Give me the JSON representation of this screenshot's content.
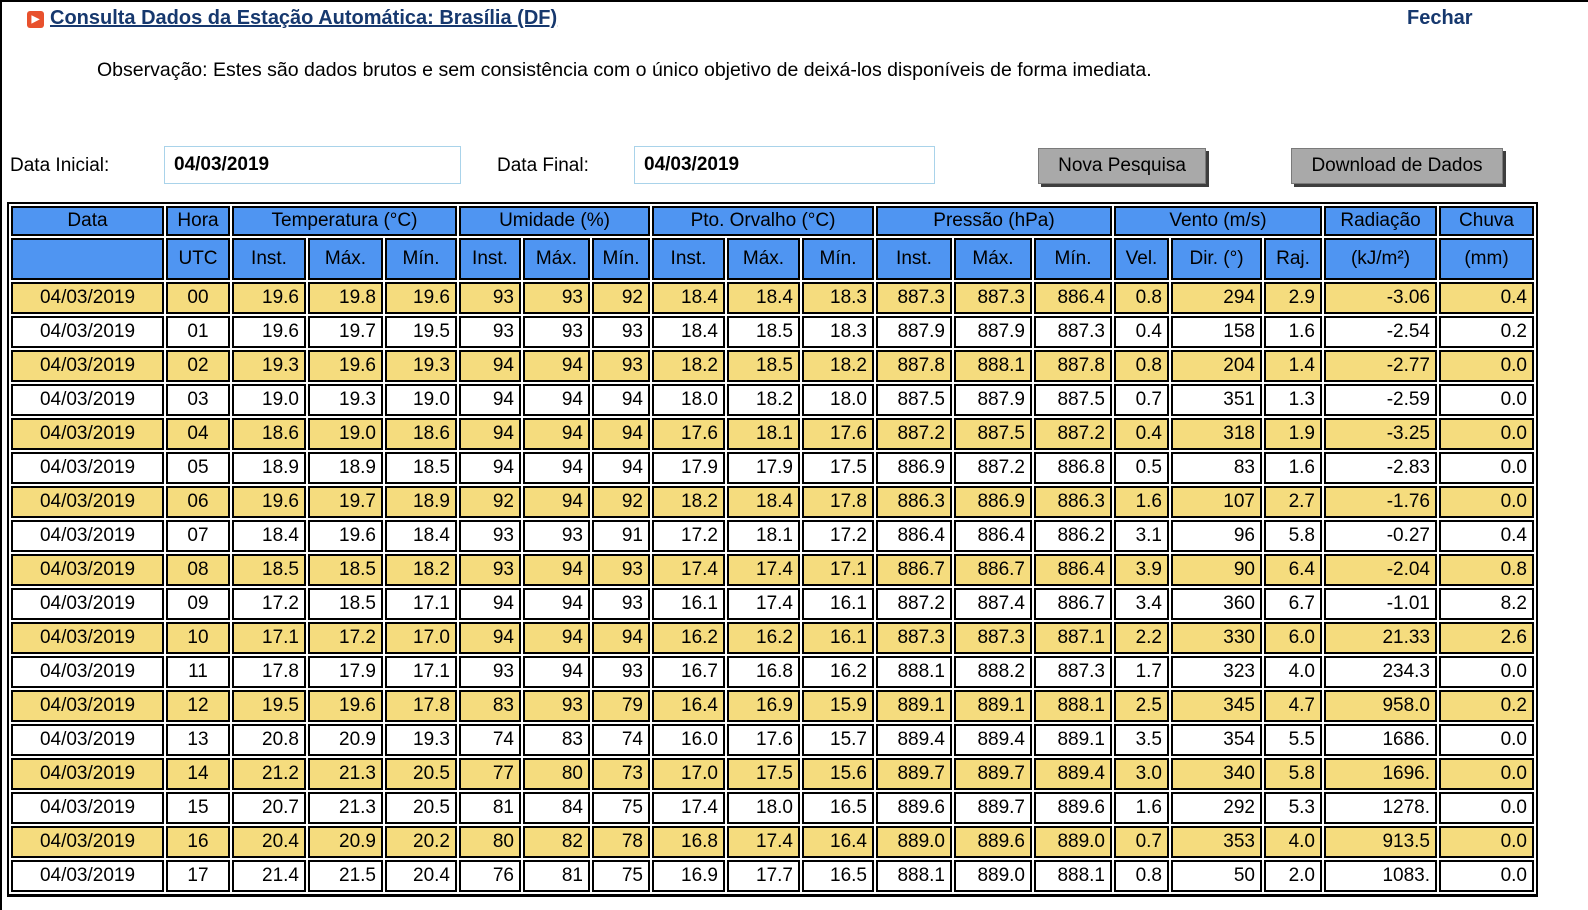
{
  "header": {
    "title": "Consulta Dados da Estação Automática: Brasília (DF)",
    "close_label": "Fechar",
    "observation": "Observação: Estes são dados brutos e sem consistência com o único objetivo de deixá-los disponíveis de forma imediata."
  },
  "icons": {
    "title_bullet": "▶"
  },
  "form": {
    "start_label": "Data Inicial:",
    "start_value": "04/03/2019",
    "end_label": "Data Final:",
    "end_value": "04/03/2019",
    "new_search_label": "Nova Pesquisa",
    "download_label": "Download de Dados"
  },
  "colors": {
    "navy": "#16386E",
    "icon-orange": "#E8512D",
    "header-blue": "#4F95F2",
    "row-yellow": "#F5DC7E",
    "button-gray": "#A9A9A9",
    "input-border": "#A9D3EA"
  },
  "table": {
    "header_row1": [
      {
        "label": "Data",
        "colspan": 1
      },
      {
        "label": "Hora",
        "colspan": 1
      },
      {
        "label": "Temperatura (°C)",
        "colspan": 3
      },
      {
        "label": "Umidade (%)",
        "colspan": 3
      },
      {
        "label": "Pto. Orvalho (°C)",
        "colspan": 3
      },
      {
        "label": "Pressão (hPa)",
        "colspan": 3
      },
      {
        "label": "Vento (m/s)",
        "colspan": 3
      },
      {
        "label": "Radiação",
        "colspan": 1
      },
      {
        "label": "Chuva",
        "colspan": 1
      }
    ],
    "header_row2": [
      "",
      "UTC",
      "Inst.",
      "Máx.",
      "Mín.",
      "Inst.",
      "Máx.",
      "Mín.",
      "Inst.",
      "Máx.",
      "Mín.",
      "Inst.",
      "Máx.",
      "Mín.",
      "Vel.",
      "Dir. (°)",
      "Raj.",
      "(kJ/m²)",
      "(mm)"
    ],
    "rows": [
      [
        "04/03/2019",
        "00",
        "19.6",
        "19.8",
        "19.6",
        "93",
        "93",
        "92",
        "18.4",
        "18.4",
        "18.3",
        "887.3",
        "887.3",
        "886.4",
        "0.8",
        "294",
        "2.9",
        "-3.06",
        "0.4"
      ],
      [
        "04/03/2019",
        "01",
        "19.6",
        "19.7",
        "19.5",
        "93",
        "93",
        "93",
        "18.4",
        "18.5",
        "18.3",
        "887.9",
        "887.9",
        "887.3",
        "0.4",
        "158",
        "1.6",
        "-2.54",
        "0.2"
      ],
      [
        "04/03/2019",
        "02",
        "19.3",
        "19.6",
        "19.3",
        "94",
        "94",
        "93",
        "18.2",
        "18.5",
        "18.2",
        "887.8",
        "888.1",
        "887.8",
        "0.8",
        "204",
        "1.4",
        "-2.77",
        "0.0"
      ],
      [
        "04/03/2019",
        "03",
        "19.0",
        "19.3",
        "19.0",
        "94",
        "94",
        "94",
        "18.0",
        "18.2",
        "18.0",
        "887.5",
        "887.9",
        "887.5",
        "0.7",
        "351",
        "1.3",
        "-2.59",
        "0.0"
      ],
      [
        "04/03/2019",
        "04",
        "18.6",
        "19.0",
        "18.6",
        "94",
        "94",
        "94",
        "17.6",
        "18.1",
        "17.6",
        "887.2",
        "887.5",
        "887.2",
        "0.4",
        "318",
        "1.9",
        "-3.25",
        "0.0"
      ],
      [
        "04/03/2019",
        "05",
        "18.9",
        "18.9",
        "18.5",
        "94",
        "94",
        "94",
        "17.9",
        "17.9",
        "17.5",
        "886.9",
        "887.2",
        "886.8",
        "0.5",
        "83",
        "1.6",
        "-2.83",
        "0.0"
      ],
      [
        "04/03/2019",
        "06",
        "19.6",
        "19.7",
        "18.9",
        "92",
        "94",
        "92",
        "18.2",
        "18.4",
        "17.8",
        "886.3",
        "886.9",
        "886.3",
        "1.6",
        "107",
        "2.7",
        "-1.76",
        "0.0"
      ],
      [
        "04/03/2019",
        "07",
        "18.4",
        "19.6",
        "18.4",
        "93",
        "93",
        "91",
        "17.2",
        "18.1",
        "17.2",
        "886.4",
        "886.4",
        "886.2",
        "3.1",
        "96",
        "5.8",
        "-0.27",
        "0.4"
      ],
      [
        "04/03/2019",
        "08",
        "18.5",
        "18.5",
        "18.2",
        "93",
        "94",
        "93",
        "17.4",
        "17.4",
        "17.1",
        "886.7",
        "886.7",
        "886.4",
        "3.9",
        "90",
        "6.4",
        "-2.04",
        "0.8"
      ],
      [
        "04/03/2019",
        "09",
        "17.2",
        "18.5",
        "17.1",
        "94",
        "94",
        "93",
        "16.1",
        "17.4",
        "16.1",
        "887.2",
        "887.4",
        "886.7",
        "3.4",
        "360",
        "6.7",
        "-1.01",
        "8.2"
      ],
      [
        "04/03/2019",
        "10",
        "17.1",
        "17.2",
        "17.0",
        "94",
        "94",
        "94",
        "16.2",
        "16.2",
        "16.1",
        "887.3",
        "887.3",
        "887.1",
        "2.2",
        "330",
        "6.0",
        "21.33",
        "2.6"
      ],
      [
        "04/03/2019",
        "11",
        "17.8",
        "17.9",
        "17.1",
        "93",
        "94",
        "93",
        "16.7",
        "16.8",
        "16.2",
        "888.1",
        "888.2",
        "887.3",
        "1.7",
        "323",
        "4.0",
        "234.3",
        "0.0"
      ],
      [
        "04/03/2019",
        "12",
        "19.5",
        "19.6",
        "17.8",
        "83",
        "93",
        "79",
        "16.4",
        "16.9",
        "15.9",
        "889.1",
        "889.1",
        "888.1",
        "2.5",
        "345",
        "4.7",
        "958.0",
        "0.2"
      ],
      [
        "04/03/2019",
        "13",
        "20.8",
        "20.9",
        "19.3",
        "74",
        "83",
        "74",
        "16.0",
        "17.6",
        "15.7",
        "889.4",
        "889.4",
        "889.1",
        "3.5",
        "354",
        "5.5",
        "1686.",
        "0.0"
      ],
      [
        "04/03/2019",
        "14",
        "21.2",
        "21.3",
        "20.5",
        "77",
        "80",
        "73",
        "17.0",
        "17.5",
        "15.6",
        "889.7",
        "889.7",
        "889.4",
        "3.0",
        "340",
        "5.8",
        "1696.",
        "0.0"
      ],
      [
        "04/03/2019",
        "15",
        "20.7",
        "21.3",
        "20.5",
        "81",
        "84",
        "75",
        "17.4",
        "18.0",
        "16.5",
        "889.6",
        "889.7",
        "889.6",
        "1.6",
        "292",
        "5.3",
        "1278.",
        "0.0"
      ],
      [
        "04/03/2019",
        "16",
        "20.4",
        "20.9",
        "20.2",
        "80",
        "82",
        "78",
        "16.8",
        "17.4",
        "16.4",
        "889.0",
        "889.6",
        "889.0",
        "0.7",
        "353",
        "4.0",
        "913.5",
        "0.0"
      ],
      [
        "04/03/2019",
        "17",
        "21.4",
        "21.5",
        "20.4",
        "76",
        "81",
        "75",
        "16.9",
        "17.7",
        "16.5",
        "888.1",
        "889.0",
        "888.1",
        "0.8",
        "50",
        "2.0",
        "1083.",
        "0.0"
      ]
    ]
  }
}
